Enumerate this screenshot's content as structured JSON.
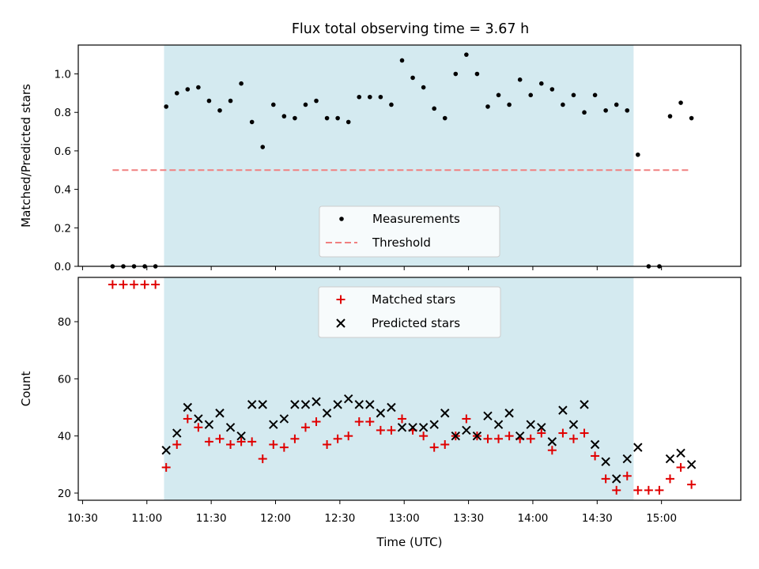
{
  "title": "Flux total observing time = 3.67 h",
  "chart_data": [
    {
      "type": "scatter",
      "title": "Flux total observing time = 3.67 h",
      "xlabel": "",
      "ylabel": "Matched/Predicted stars",
      "ylim": [
        0,
        1.15
      ],
      "yticks": [
        "0.0",
        "0.2",
        "0.4",
        "0.6",
        "0.8",
        "1.0"
      ],
      "xlim": [
        "10:28",
        "15:37"
      ],
      "observing_window": {
        "start": "11:08",
        "end": "14:47",
        "color": "#d4eaf0"
      },
      "threshold": {
        "name": "Threshold",
        "value": 0.5,
        "x_start": "10:44",
        "x_end": "15:13",
        "color": "#f08080"
      },
      "legend": {
        "placement": "lower-center",
        "entries": [
          "Measurements",
          "Threshold"
        ]
      },
      "series": [
        {
          "name": "Measurements",
          "marker": "dot",
          "color": "#000000",
          "x": [
            "10:44",
            "10:49",
            "10:54",
            "10:59",
            "11:04",
            "11:09",
            "11:14",
            "11:19",
            "11:24",
            "11:29",
            "11:34",
            "11:39",
            "11:44",
            "11:49",
            "11:54",
            "11:59",
            "12:04",
            "12:09",
            "12:14",
            "12:19",
            "12:24",
            "12:29",
            "12:34",
            "12:39",
            "12:44",
            "12:49",
            "12:54",
            "12:59",
            "13:04",
            "13:09",
            "13:14",
            "13:19",
            "13:24",
            "13:29",
            "13:34",
            "13:39",
            "13:44",
            "13:49",
            "13:54",
            "13:59",
            "14:04",
            "14:09",
            "14:14",
            "14:19",
            "14:24",
            "14:29",
            "14:34",
            "14:39",
            "14:44",
            "14:49",
            "14:54",
            "14:59",
            "15:04",
            "15:09",
            "15:14"
          ],
          "values": [
            0.0,
            0.0,
            0.0,
            0.0,
            0.0,
            0.83,
            0.9,
            0.92,
            0.93,
            0.86,
            0.81,
            0.86,
            0.95,
            0.75,
            0.62,
            0.84,
            0.78,
            0.77,
            0.84,
            0.86,
            0.77,
            0.77,
            0.75,
            0.88,
            0.88,
            0.88,
            0.84,
            1.07,
            0.98,
            0.93,
            0.82,
            0.77,
            1.0,
            1.1,
            1.0,
            0.83,
            0.89,
            0.84,
            0.97,
            0.89,
            0.95,
            0.92,
            0.84,
            0.89,
            0.8,
            0.89,
            0.81,
            0.84,
            0.81,
            0.58,
            0.0,
            0.0,
            0.78,
            0.85,
            0.77
          ]
        }
      ]
    },
    {
      "type": "scatter",
      "title": "",
      "xlabel": "Time (UTC)",
      "ylabel": "Count",
      "ylim": [
        17.5,
        95.5
      ],
      "yticks": [
        "20",
        "40",
        "60",
        "80"
      ],
      "xlim": [
        "10:28",
        "15:37"
      ],
      "xticks": [
        "10:30",
        "11:00",
        "11:30",
        "12:00",
        "12:30",
        "13:00",
        "13:30",
        "14:00",
        "14:30",
        "15:00"
      ],
      "observing_window": {
        "start": "11:08",
        "end": "14:47",
        "color": "#d4eaf0"
      },
      "legend": {
        "placement": "upper-center",
        "entries": [
          "Matched stars",
          "Predicted stars"
        ]
      },
      "series": [
        {
          "name": "Matched stars",
          "marker": "plus",
          "color": "#e00000",
          "x": [
            "10:44",
            "10:49",
            "10:54",
            "10:59",
            "11:04",
            "11:09",
            "11:14",
            "11:19",
            "11:24",
            "11:29",
            "11:34",
            "11:39",
            "11:44",
            "11:49",
            "11:54",
            "11:59",
            "12:04",
            "12:09",
            "12:14",
            "12:19",
            "12:24",
            "12:29",
            "12:34",
            "12:39",
            "12:44",
            "12:49",
            "12:54",
            "12:59",
            "13:04",
            "13:09",
            "13:14",
            "13:19",
            "13:24",
            "13:29",
            "13:34",
            "13:39",
            "13:44",
            "13:49",
            "13:54",
            "13:59",
            "14:04",
            "14:09",
            "14:14",
            "14:19",
            "14:24",
            "14:29",
            "14:34",
            "14:39",
            "14:44",
            "14:49",
            "14:54",
            "14:59",
            "15:04",
            "15:09",
            "15:14"
          ],
          "values": [
            93,
            93,
            93,
            93,
            93,
            29,
            37,
            46,
            43,
            38,
            39,
            37,
            38,
            38,
            32,
            37,
            36,
            39,
            43,
            45,
            37,
            39,
            40,
            45,
            45,
            42,
            42,
            46,
            42,
            40,
            36,
            37,
            40,
            46,
            40,
            39,
            39,
            40,
            39,
            39,
            41,
            35,
            41,
            39,
            41,
            33,
            25,
            21,
            26,
            21,
            21,
            21,
            25,
            29,
            23
          ]
        },
        {
          "name": "Predicted stars",
          "marker": "x",
          "color": "#000000",
          "x": [
            "11:09",
            "11:14",
            "11:19",
            "11:24",
            "11:29",
            "11:34",
            "11:39",
            "11:44",
            "11:49",
            "11:54",
            "11:59",
            "12:04",
            "12:09",
            "12:14",
            "12:19",
            "12:24",
            "12:29",
            "12:34",
            "12:39",
            "12:44",
            "12:49",
            "12:54",
            "12:59",
            "13:04",
            "13:09",
            "13:14",
            "13:19",
            "13:24",
            "13:29",
            "13:34",
            "13:39",
            "13:44",
            "13:49",
            "13:54",
            "13:59",
            "14:04",
            "14:09",
            "14:14",
            "14:19",
            "14:24",
            "14:29",
            "14:34",
            "14:39",
            "14:44",
            "14:49",
            "15:04",
            "15:09",
            "15:14"
          ],
          "values": [
            35,
            41,
            50,
            46,
            44,
            48,
            43,
            40,
            51,
            51,
            44,
            46,
            51,
            51,
            52,
            48,
            51,
            53,
            51,
            51,
            48,
            50,
            43,
            43,
            43,
            44,
            48,
            40,
            42,
            40,
            47,
            44,
            48,
            40,
            44,
            43,
            38,
            49,
            44,
            51,
            37,
            31,
            25,
            32,
            36,
            32,
            34,
            30
          ]
        }
      ]
    }
  ]
}
